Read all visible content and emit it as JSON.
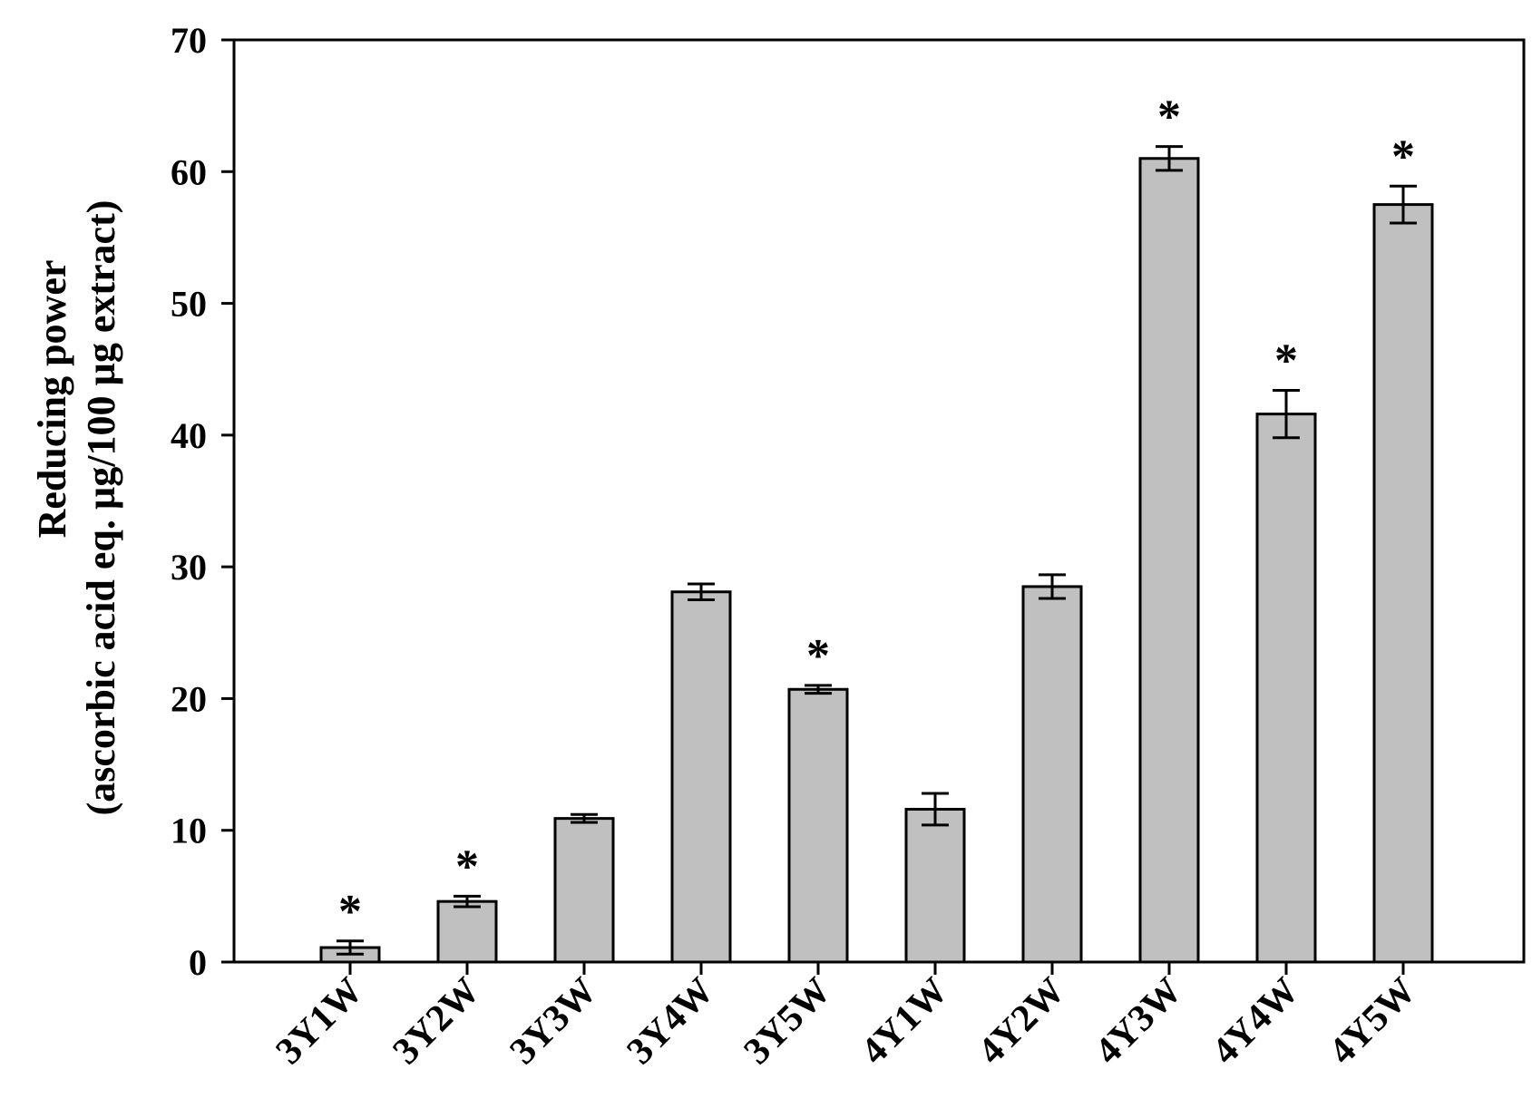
{
  "chart_data": {
    "type": "bar",
    "title": "",
    "xlabel": "",
    "ylabel": "Reducing power",
    "ylabel_line2": "(ascorbic acid eq. µg/100 µg extract)",
    "ylim": [
      0,
      70
    ],
    "yticks": [
      0,
      10,
      20,
      30,
      40,
      50,
      60,
      70
    ],
    "grid": false,
    "legend": "none",
    "categories": [
      "3Y1W",
      "3Y2W",
      "3Y3W",
      "3Y4W",
      "3Y5W",
      "4Y1W",
      "4Y2W",
      "4Y3W",
      "4Y4W",
      "4Y5W"
    ],
    "values": [
      1.1,
      4.6,
      10.9,
      28.1,
      20.7,
      11.6,
      28.5,
      61.0,
      41.6,
      57.5
    ],
    "errors": [
      0.5,
      0.4,
      0.3,
      0.6,
      0.3,
      1.2,
      0.9,
      0.9,
      1.8,
      1.4
    ],
    "significance": [
      "*",
      "*",
      "",
      "",
      "*",
      "",
      "",
      "*",
      "*",
      "*"
    ],
    "bar_color": "#c0c0c0",
    "edge_color": "#000000"
  }
}
